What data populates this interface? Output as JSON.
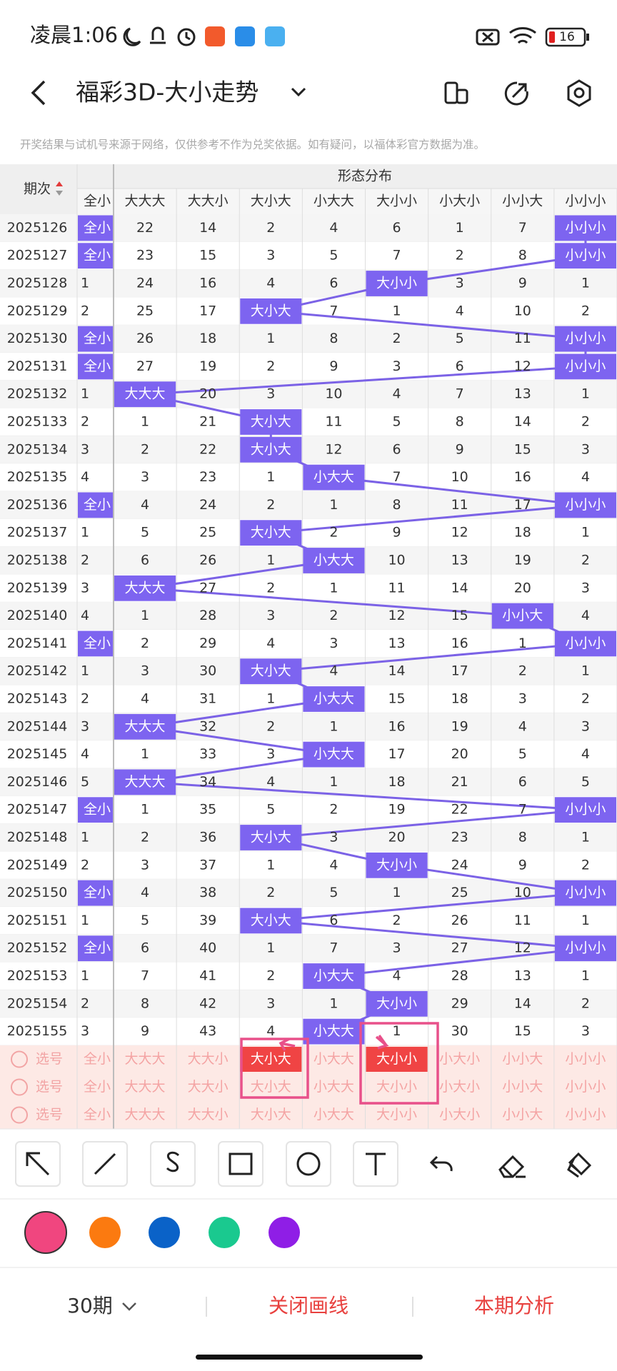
{
  "status_bar": {
    "time": "凌晨1:06",
    "battery": 16
  },
  "header": {
    "title": "福彩3D-大小走势"
  },
  "notice": "开奖结果与试机号来源于网络，仅供参考不作为兑奖依据。如有疑问，以福体彩官方数据为准。",
  "table": {
    "period_header": "期次",
    "group_header": "形态分布",
    "columns": [
      "全小",
      "大大大",
      "大大小",
      "大小大",
      "小大大",
      "大小小",
      "小大小",
      "小小大",
      "小小小"
    ],
    "rows": [
      {
        "period": "2025126",
        "cells": [
          "全小",
          22,
          14,
          2,
          4,
          6,
          1,
          7,
          "小小小"
        ]
      },
      {
        "period": "2025127",
        "cells": [
          "全小",
          23,
          15,
          3,
          5,
          7,
          2,
          8,
          "小小小"
        ]
      },
      {
        "period": "2025128",
        "cells": [
          1,
          24,
          16,
          4,
          6,
          "大小小",
          3,
          9,
          1
        ]
      },
      {
        "period": "2025129",
        "cells": [
          2,
          25,
          17,
          "大小大",
          7,
          1,
          4,
          10,
          2
        ]
      },
      {
        "period": "2025130",
        "cells": [
          "全小",
          26,
          18,
          1,
          8,
          2,
          5,
          11,
          "小小小"
        ]
      },
      {
        "period": "2025131",
        "cells": [
          "全小",
          27,
          19,
          2,
          9,
          3,
          6,
          12,
          "小小小"
        ]
      },
      {
        "period": "2025132",
        "cells": [
          1,
          "大大大",
          20,
          3,
          10,
          4,
          7,
          13,
          1
        ]
      },
      {
        "period": "2025133",
        "cells": [
          2,
          1,
          21,
          "大小大",
          11,
          5,
          8,
          14,
          2
        ]
      },
      {
        "period": "2025134",
        "cells": [
          3,
          2,
          22,
          "大小大",
          12,
          6,
          9,
          15,
          3
        ]
      },
      {
        "period": "2025135",
        "cells": [
          4,
          3,
          23,
          1,
          "小大大",
          7,
          10,
          16,
          4
        ]
      },
      {
        "period": "2025136",
        "cells": [
          "全小",
          4,
          24,
          2,
          1,
          8,
          11,
          17,
          "小小小"
        ]
      },
      {
        "period": "2025137",
        "cells": [
          1,
          5,
          25,
          "大小大",
          2,
          9,
          12,
          18,
          1
        ]
      },
      {
        "period": "2025138",
        "cells": [
          2,
          6,
          26,
          1,
          "小大大",
          10,
          13,
          19,
          2
        ]
      },
      {
        "period": "2025139",
        "cells": [
          3,
          "大大大",
          27,
          2,
          1,
          11,
          14,
          20,
          3
        ]
      },
      {
        "period": "2025140",
        "cells": [
          4,
          1,
          28,
          3,
          2,
          12,
          15,
          "小小大",
          4
        ]
      },
      {
        "period": "2025141",
        "cells": [
          "全小",
          2,
          29,
          4,
          3,
          13,
          16,
          1,
          "小小小"
        ]
      },
      {
        "period": "2025142",
        "cells": [
          1,
          3,
          30,
          "大小大",
          4,
          14,
          17,
          2,
          1
        ]
      },
      {
        "period": "2025143",
        "cells": [
          2,
          4,
          31,
          1,
          "小大大",
          15,
          18,
          3,
          2
        ]
      },
      {
        "period": "2025144",
        "cells": [
          3,
          "大大大",
          32,
          2,
          1,
          16,
          19,
          4,
          3
        ]
      },
      {
        "period": "2025145",
        "cells": [
          4,
          1,
          33,
          3,
          "小大大",
          17,
          20,
          5,
          4
        ]
      },
      {
        "period": "2025146",
        "cells": [
          5,
          "大大大",
          34,
          4,
          1,
          18,
          21,
          6,
          5
        ]
      },
      {
        "period": "2025147",
        "cells": [
          "全小",
          1,
          35,
          5,
          2,
          19,
          22,
          7,
          "小小小"
        ]
      },
      {
        "period": "2025148",
        "cells": [
          1,
          2,
          36,
          "大小大",
          3,
          20,
          23,
          8,
          1
        ]
      },
      {
        "period": "2025149",
        "cells": [
          2,
          3,
          37,
          1,
          4,
          "大小小",
          24,
          9,
          2
        ]
      },
      {
        "period": "2025150",
        "cells": [
          "全小",
          4,
          38,
          2,
          5,
          1,
          25,
          10,
          "小小小"
        ]
      },
      {
        "period": "2025151",
        "cells": [
          1,
          5,
          39,
          "大小大",
          6,
          2,
          26,
          11,
          1
        ]
      },
      {
        "period": "2025152",
        "cells": [
          "全小",
          6,
          40,
          1,
          7,
          3,
          27,
          12,
          "小小小"
        ]
      },
      {
        "period": "2025153",
        "cells": [
          1,
          7,
          41,
          2,
          "小大大",
          4,
          28,
          13,
          1
        ]
      },
      {
        "period": "2025154",
        "cells": [
          2,
          8,
          42,
          3,
          1,
          "大小小",
          29,
          14,
          2
        ]
      },
      {
        "period": "2025155",
        "cells": [
          3,
          9,
          43,
          4,
          "小大大",
          1,
          30,
          15,
          3
        ]
      }
    ],
    "pick_rows": [
      {
        "label": "选号",
        "selected": [
          3,
          5
        ],
        "cells": [
          "全小",
          "大大大",
          "大大小",
          "大小大",
          "小大大",
          "大小小",
          "小大小",
          "小小大",
          "小小小"
        ]
      },
      {
        "label": "选号",
        "selected": [],
        "cells": [
          "全小",
          "大大大",
          "大大小",
          "大小大",
          "小大大",
          "大小小",
          "小大小",
          "小小大",
          "小小小"
        ]
      },
      {
        "label": "选号",
        "selected": [],
        "cells": [
          "全小",
          "大大大",
          "大大小",
          "大小大",
          "小大大",
          "大小小",
          "小大小",
          "小小大",
          "小小小"
        ]
      }
    ]
  },
  "bottom_bar": {
    "period_count": "30期",
    "close_lines": "关闭画线",
    "analysis": "本期分析"
  }
}
